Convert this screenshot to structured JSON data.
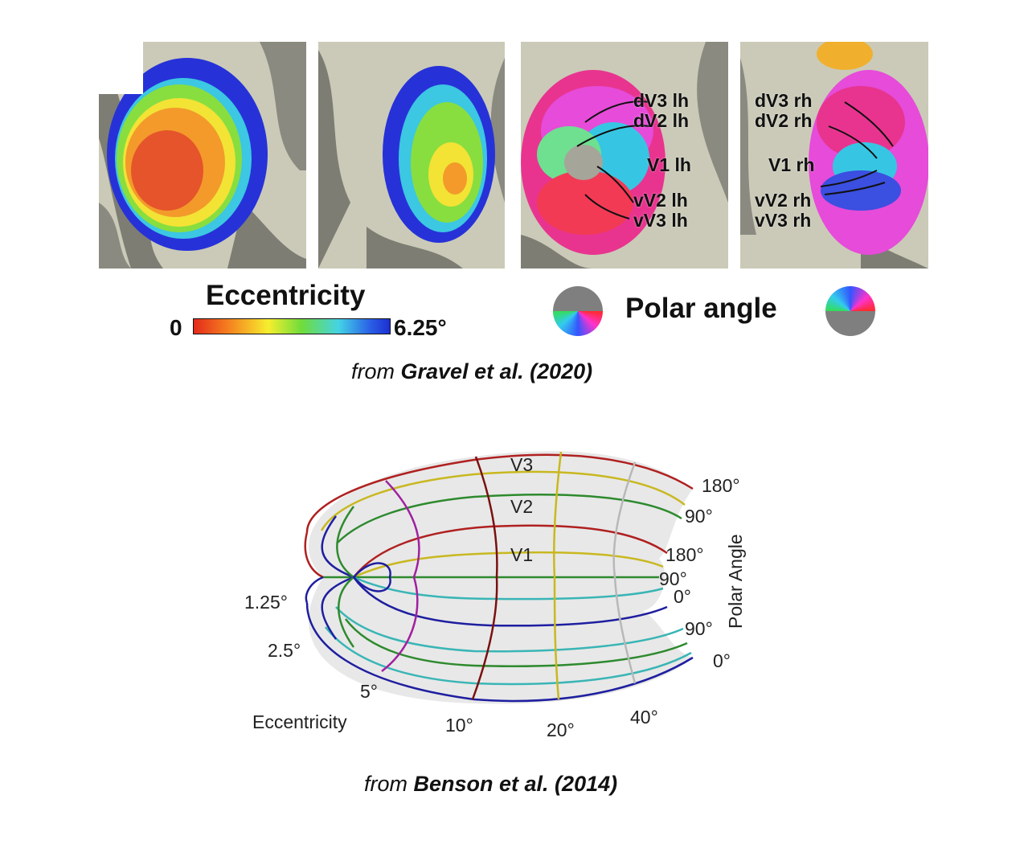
{
  "top_figure": {
    "area_labels_lh": [
      "dV3 lh",
      "dV2 lh",
      "V1 lh",
      "vV2 lh",
      "vV3 lh"
    ],
    "area_labels_rh": [
      "dV3 rh",
      "dV2 rh",
      "V1 rh",
      "vV2 rh",
      "vV3 rh"
    ],
    "eccentricity_legend": {
      "title": "Eccentricity",
      "min": "0",
      "max": "6.25°",
      "colors": [
        "#e42a1c",
        "#f5821f",
        "#f6ee2e",
        "#6fdc3b",
        "#43d3e6",
        "#2a5fe6",
        "#1d2fd0"
      ]
    },
    "polar_angle_legend": {
      "title": "Polar angle"
    },
    "caption_prefix": "from",
    "caption_source": "Gravel et al. (2020)"
  },
  "bottom_figure": {
    "area_labels": [
      "V3",
      "V2",
      "V1"
    ],
    "polar_angle_title": "Polar Angle",
    "polar_angle_ticks": [
      "180°",
      "90°",
      "180°",
      "90°",
      "0°",
      "90°",
      "0°"
    ],
    "eccentricity_title": "Eccentricity",
    "eccentricity_ticks": [
      "1.25°",
      "2.5°",
      "5°",
      "10°",
      "20°",
      "40°"
    ],
    "caption_prefix": "from",
    "caption_source": "Benson et al. (2014)"
  }
}
